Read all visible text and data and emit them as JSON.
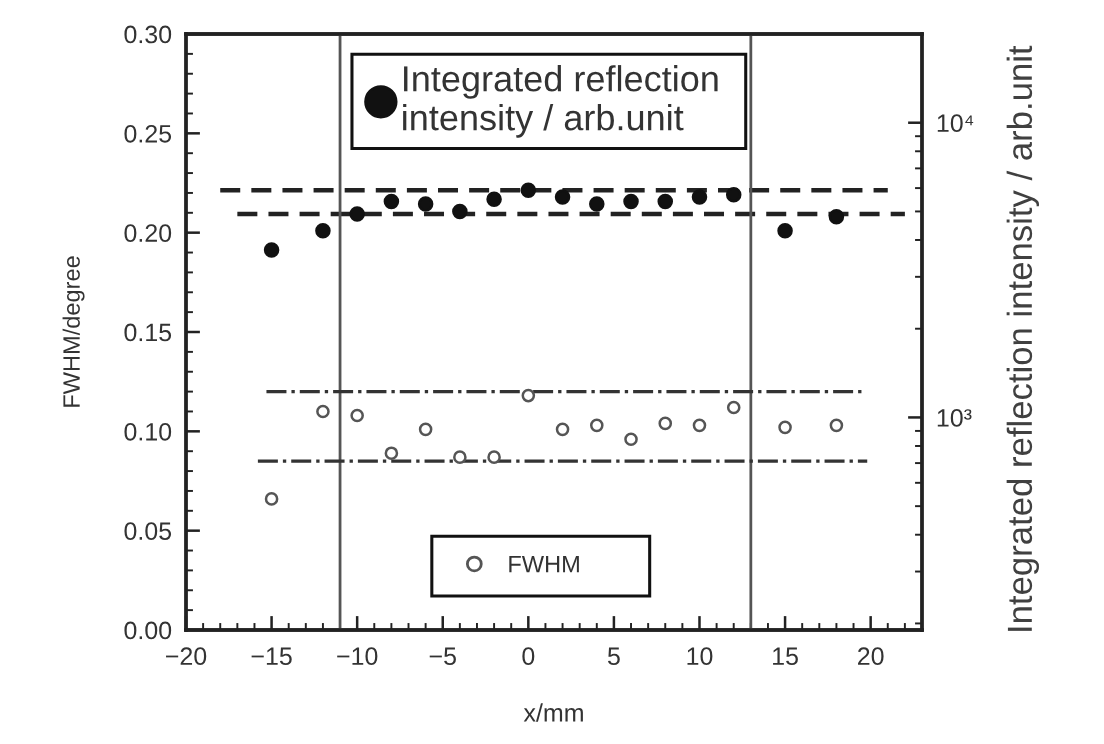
{
  "chart_data": {
    "type": "scatter",
    "xlabel": "x/mm",
    "ylabel": "FWHM/degree",
    "y2label": "Integrated reflection intensity / arb.unit",
    "x": [
      -15,
      -12,
      -10,
      -8,
      -6,
      -4,
      -2,
      0,
      2,
      4,
      6,
      8,
      10,
      12,
      15,
      18
    ],
    "series": [
      {
        "name": "Integrated reflection\nintensity / arb.unit",
        "axis": "y2",
        "color": "#111111",
        "marker": "circle",
        "values": [
          3700,
          4300,
          4900,
          5400,
          5300,
          5000,
          5500,
          5900,
          5600,
          5300,
          5400,
          5400,
          5600,
          5700,
          4300,
          4800
        ]
      },
      {
        "type": "line",
        "axis": "y2",
        "color": "#222222",
        "line_style": "dashed",
        "marker": "none",
        "x": [
          -18,
          21
        ],
        "values": [
          5900,
          5900
        ]
      },
      {
        "type": "line",
        "axis": "y2",
        "color": "#222222",
        "line_style": "dashed",
        "marker": "none",
        "x": [
          -17,
          22
        ],
        "values": [
          4900,
          4900
        ]
      },
      {
        "name": "FWHM",
        "color": "#555555",
        "marker": "open circle",
        "values": [
          0.066,
          0.11,
          0.108,
          0.089,
          0.101,
          0.087,
          0.087,
          0.118,
          0.101,
          0.103,
          0.096,
          0.104,
          0.103,
          0.112,
          0.102,
          0.103
        ]
      },
      {
        "type": "line",
        "color": "#333333",
        "line_style": "dashdot",
        "marker": "none",
        "x": [
          -15.3,
          19.5
        ],
        "values": [
          0.12,
          0.12
        ]
      },
      {
        "type": "line",
        "color": "#333333",
        "line_style": "dashdot",
        "marker": "none",
        "x": [
          -15.8,
          19.8
        ],
        "values": [
          0.085,
          0.085
        ]
      }
    ],
    "ref_lines": [
      {
        "axis": "x",
        "value": -11,
        "color": "#555555"
      },
      {
        "axis": "x",
        "value": 13,
        "color": "#555555"
      }
    ],
    "xlim": [
      -20,
      23
    ],
    "xticks": [
      {
        "value": -20,
        "label": "−20"
      },
      {
        "value": -15,
        "label": "−15"
      },
      {
        "value": -10,
        "label": "−10"
      },
      {
        "value": -5,
        "label": "−5"
      },
      0,
      5,
      10,
      15,
      20
    ],
    "ylim": [
      0,
      0.3
    ],
    "yticks": [
      {
        "value": 0,
        "label": "0.00"
      },
      0.05,
      {
        "value": 0.1,
        "label": "0.10"
      },
      0.15,
      {
        "value": 0.2,
        "label": "0.20"
      },
      0.25,
      {
        "value": 0.3,
        "label": "0.30"
      }
    ],
    "y2lim": [
      190,
      20000
    ],
    "y2ticks": [
      {
        "value": 1000,
        "label": "10³"
      },
      {
        "value": 10000,
        "label": "10⁴"
      }
    ],
    "log": "y2",
    "legend": [
      "top",
      "bottom"
    ]
  }
}
